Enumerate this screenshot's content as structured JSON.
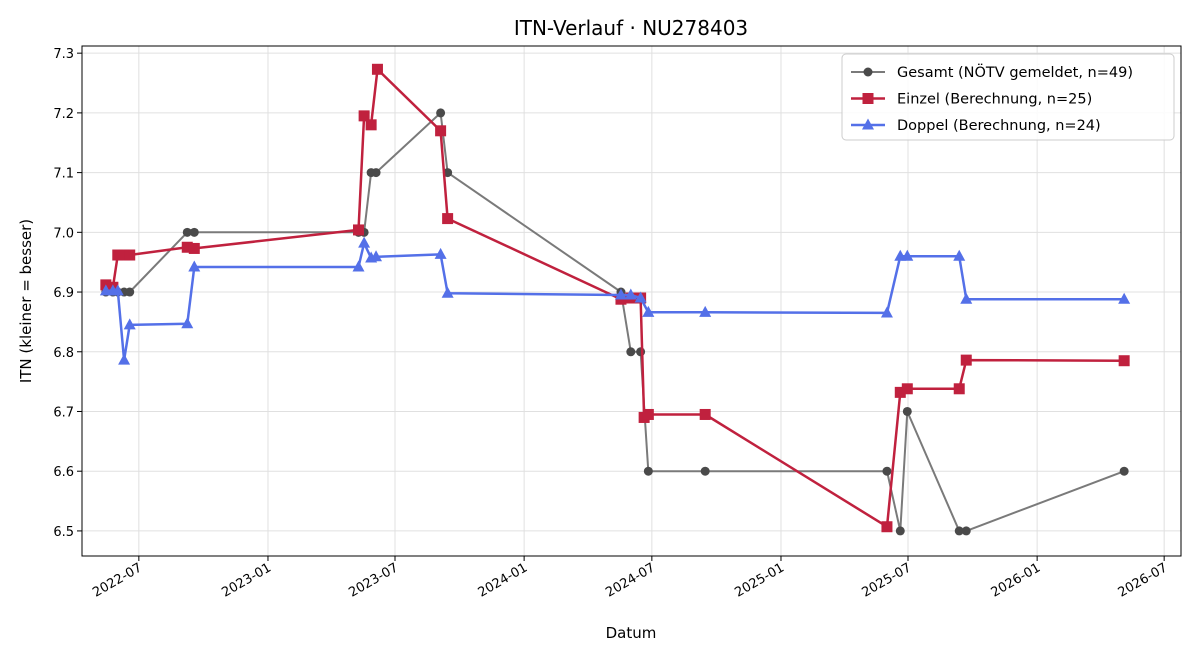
{
  "chart_data": {
    "type": "line",
    "title": "ITN-Verlauf · NU278403",
    "xlabel": "Datum",
    "ylabel": "ITN  (kleiner = besser)",
    "x_axis_type": "date",
    "xlim": [
      "2022-04-11",
      "2026-07-25"
    ],
    "ylim": [
      6.458,
      7.312
    ],
    "yticks": [
      6.5,
      6.6,
      6.7,
      6.8,
      6.9,
      7.0,
      7.1,
      7.2,
      7.3
    ],
    "ytick_labels": [
      "6.5",
      "6.6",
      "6.7",
      "6.8",
      "6.9",
      "7.0",
      "7.1",
      "7.2",
      "7.3"
    ],
    "xticks": [
      "2022-07-01",
      "2023-01-01",
      "2023-07-01",
      "2024-01-01",
      "2024-07-01",
      "2025-01-01",
      "2025-07-01",
      "2026-01-01",
      "2026-07-01"
    ],
    "xtick_labels": [
      "2022-07",
      "2023-01",
      "2023-07",
      "2024-01",
      "2024-07",
      "2025-01",
      "2025-07",
      "2026-01",
      "2026-07"
    ],
    "grid": true,
    "legend_position": "top-right",
    "series": [
      {
        "name": "Gesamt (NÖTV gemeldet, n=49)",
        "color": "#7a7a7a",
        "marker_color": "#4a4a4a",
        "marker": "circle",
        "points": [
          [
            "2022-05-15",
            6.9
          ],
          [
            "2022-05-25",
            6.9
          ],
          [
            "2022-06-01",
            6.9
          ],
          [
            "2022-06-10",
            6.9
          ],
          [
            "2022-06-18",
            6.9
          ],
          [
            "2022-09-08",
            7.0
          ],
          [
            "2022-09-18",
            7.0
          ],
          [
            "2023-05-10",
            7.0
          ],
          [
            "2023-05-18",
            7.0
          ],
          [
            "2023-05-28",
            7.1
          ],
          [
            "2023-06-04",
            7.1
          ],
          [
            "2023-09-04",
            7.2
          ],
          [
            "2023-09-14",
            7.1
          ],
          [
            "2024-05-18",
            6.9
          ],
          [
            "2024-06-01",
            6.8
          ],
          [
            "2024-06-15",
            6.8
          ],
          [
            "2024-06-26",
            6.6
          ],
          [
            "2024-09-15",
            6.6
          ],
          [
            "2025-06-01",
            6.6
          ],
          [
            "2025-06-20",
            6.5
          ],
          [
            "2025-06-30",
            6.7
          ],
          [
            "2025-09-12",
            6.5
          ],
          [
            "2025-09-22",
            6.5
          ],
          [
            "2026-05-05",
            6.6
          ]
        ]
      },
      {
        "name": "Einzel (Berechnung, n=25)",
        "color": "#c0213e",
        "marker": "square",
        "points": [
          [
            "2022-05-15",
            6.912
          ],
          [
            "2022-05-25",
            6.908
          ],
          [
            "2022-06-01",
            6.962
          ],
          [
            "2022-06-10",
            6.962
          ],
          [
            "2022-06-18",
            6.962
          ],
          [
            "2022-09-08",
            6.975
          ],
          [
            "2022-09-18",
            6.973
          ],
          [
            "2023-05-10",
            7.004
          ],
          [
            "2023-05-18",
            7.195
          ],
          [
            "2023-05-28",
            7.18
          ],
          [
            "2023-06-06",
            7.273
          ],
          [
            "2023-09-04",
            7.17
          ],
          [
            "2023-09-14",
            7.023
          ],
          [
            "2024-05-18",
            6.888
          ],
          [
            "2024-06-01",
            6.89
          ],
          [
            "2024-06-15",
            6.89
          ],
          [
            "2024-06-20",
            6.69
          ],
          [
            "2024-06-26",
            6.695
          ],
          [
            "2024-09-15",
            6.695
          ],
          [
            "2025-06-01",
            6.507
          ],
          [
            "2025-06-20",
            6.732
          ],
          [
            "2025-06-30",
            6.738
          ],
          [
            "2025-09-12",
            6.738
          ],
          [
            "2025-09-22",
            6.786
          ],
          [
            "2026-05-05",
            6.785
          ]
        ]
      },
      {
        "name": "Doppel (Berechnung, n=24)",
        "color": "#5470e8",
        "marker": "triangle",
        "points": [
          [
            "2022-05-15",
            6.902
          ],
          [
            "2022-05-25",
            6.902
          ],
          [
            "2022-06-01",
            6.902
          ],
          [
            "2022-06-10",
            6.786
          ],
          [
            "2022-06-18",
            6.845
          ],
          [
            "2022-09-08",
            6.847
          ],
          [
            "2022-09-18",
            6.942
          ],
          [
            "2023-05-10",
            6.942
          ],
          [
            "2023-05-18",
            6.982
          ],
          [
            "2023-05-28",
            6.957
          ],
          [
            "2023-06-04",
            6.959
          ],
          [
            "2023-09-04",
            6.963
          ],
          [
            "2023-09-14",
            6.898
          ],
          [
            "2024-05-18",
            6.895
          ],
          [
            "2024-06-01",
            6.895
          ],
          [
            "2024-06-15",
            6.89
          ],
          [
            "2024-06-26",
            6.866
          ],
          [
            "2024-09-15",
            6.866
          ],
          [
            "2025-06-01",
            6.865
          ],
          [
            "2025-06-20",
            6.96
          ],
          [
            "2025-06-30",
            6.96
          ],
          [
            "2025-09-12",
            6.96
          ],
          [
            "2025-09-22",
            6.888
          ],
          [
            "2026-05-05",
            6.888
          ]
        ]
      }
    ]
  }
}
